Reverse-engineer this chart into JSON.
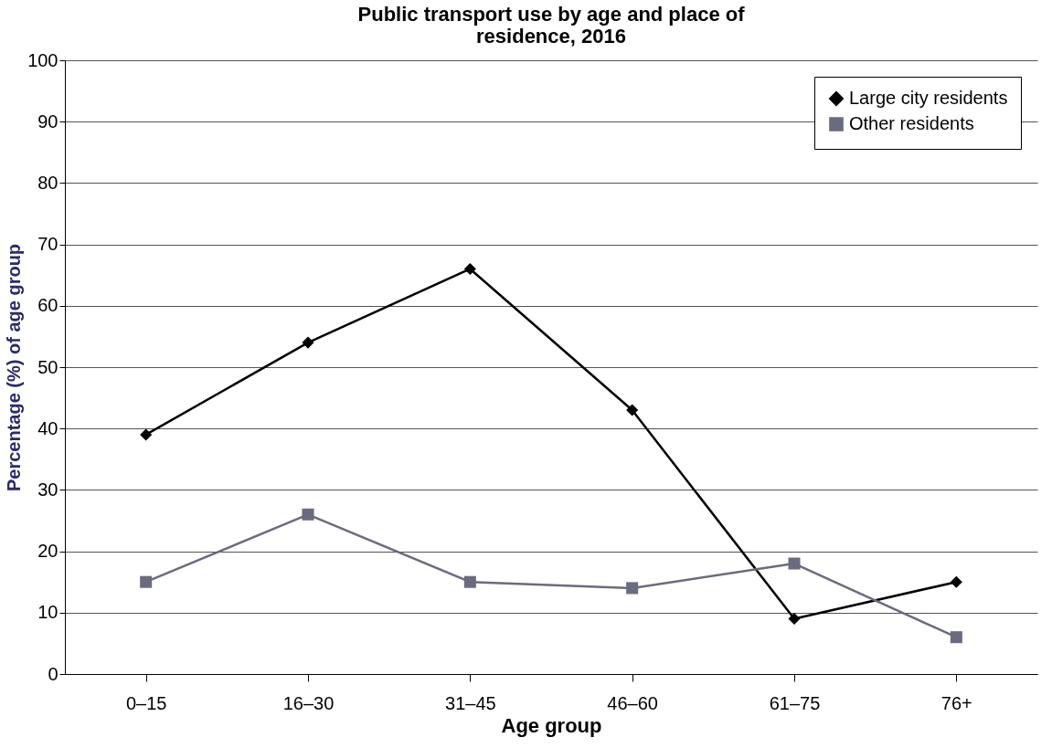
{
  "chart_data": {
    "type": "line",
    "title": "Public transport use by age and place of residence, 2016",
    "xlabel": "Age group",
    "ylabel": "Percentage (%) of age group",
    "categories": [
      "0–15",
      "16–30",
      "31–45",
      "46–60",
      "61–75",
      "76+"
    ],
    "series": [
      {
        "name": "Large city residents",
        "color": "#000000",
        "marker": "diamond",
        "values": [
          39,
          54,
          66,
          43,
          9,
          15
        ]
      },
      {
        "name": "Other residents",
        "color": "#6b6b80",
        "marker": "square",
        "values": [
          15,
          26,
          15,
          14,
          18,
          6
        ]
      }
    ],
    "ylim": [
      0,
      100
    ],
    "yticks": [
      0,
      10,
      20,
      30,
      40,
      50,
      60,
      70,
      80,
      90,
      100
    ],
    "grid": "y",
    "legend": "top right",
    "line_style": "solid"
  }
}
